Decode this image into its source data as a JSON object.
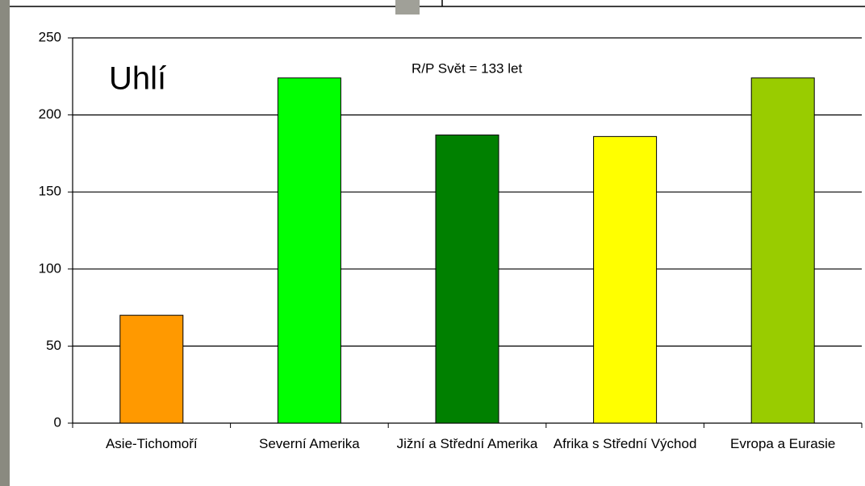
{
  "chart_data": {
    "type": "bar",
    "title": "Uhlí",
    "annotation": "R/P Svět = 133 let",
    "categories": [
      "Asie-Tichomoří",
      "Severní Amerika",
      "Jižní a Střední Amerika",
      "Afrika s Střední Východ",
      "Evropa a Eurasie"
    ],
    "values": [
      70,
      224,
      187,
      186,
      224
    ],
    "colors": [
      "#ff9900",
      "#00ff00",
      "#008000",
      "#ffff00",
      "#99cc00"
    ],
    "ylim": [
      0,
      250
    ],
    "yticks": [
      0,
      50,
      100,
      150,
      200,
      250
    ],
    "grid": true
  }
}
